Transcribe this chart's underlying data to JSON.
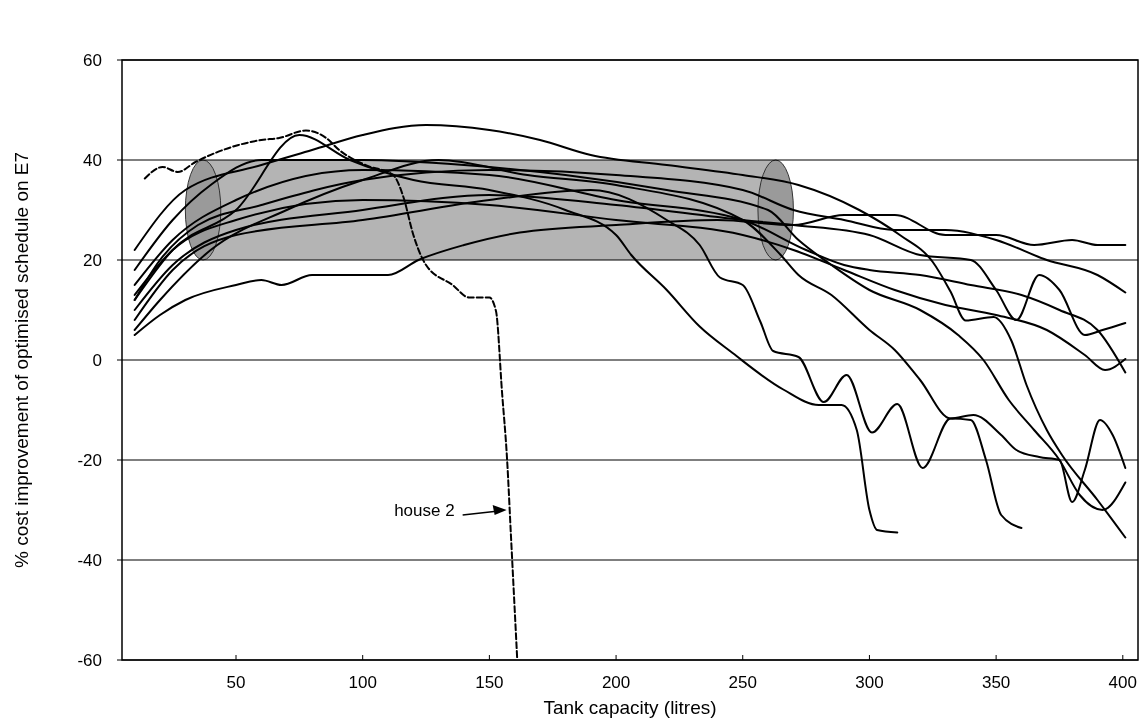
{
  "chart_data": {
    "type": "line",
    "xlabel": "Tank capacity (litres)",
    "ylabel": "% cost improvement of optimised schedule on E7",
    "xlim": [
      5,
      406
    ],
    "xticks": [
      50,
      100,
      150,
      200,
      250,
      300,
      350,
      400
    ],
    "ylim": [
      -60,
      60
    ],
    "yticks": [
      -60,
      -40,
      -20,
      0,
      20,
      40,
      60
    ],
    "grid": "y",
    "marker": "none",
    "annotations": [
      "house 2"
    ],
    "line_style": "solid",
    "series": [
      {
        "color": "#000000",
        "x": [
          10,
          20,
          30,
          50,
          60,
          68,
          80,
          100,
          110,
          122,
          140,
          162,
          200,
          240,
          270,
          290,
          310,
          330,
          350,
          365,
          380,
          390,
          401
        ],
        "values": [
          5,
          9,
          12,
          15,
          16,
          15,
          17,
          17,
          17,
          20,
          23,
          25.5,
          27,
          28,
          27,
          29,
          29,
          25,
          25,
          23,
          24,
          23,
          23
        ]
      },
      {
        "color": "#000000",
        "x": [
          10,
          20,
          35,
          60,
          100,
          150,
          200,
          250,
          270,
          290,
          310,
          330,
          350,
          370,
          390,
          401
        ],
        "values": [
          12,
          20,
          27,
          31,
          36,
          38,
          37,
          34,
          30,
          28,
          26,
          26,
          24,
          20,
          17,
          13.5
        ]
      },
      {
        "color": "#000000",
        "x": [
          10,
          25,
          50,
          100,
          150,
          200,
          250,
          270,
          300,
          320,
          340,
          350,
          358,
          367,
          375,
          385,
          392,
          401
        ],
        "values": [
          10,
          19,
          26,
          30,
          33,
          31,
          28,
          27,
          25,
          21,
          20,
          14,
          8,
          17,
          14,
          5,
          6,
          7.4
        ]
      },
      {
        "color": "#000000",
        "x": [
          10,
          25,
          50,
          100,
          150,
          200,
          250,
          270,
          290,
          310,
          330,
          350,
          370,
          385,
          393,
          401
        ],
        "values": [
          13,
          22,
          28,
          32,
          31,
          28,
          25,
          22,
          18,
          14,
          11,
          9,
          6,
          1,
          -2,
          0.2
        ]
      },
      {
        "color": "#000000",
        "x": [
          10,
          25,
          50,
          100,
          150,
          200,
          250,
          275,
          290,
          300,
          320,
          340,
          360,
          375,
          390,
          401
        ],
        "values": [
          15,
          24,
          32,
          38,
          37,
          32,
          28,
          22,
          19,
          18,
          17,
          15,
          13,
          10,
          6,
          -2.5
        ]
      },
      {
        "color": "#000000",
        "x": [
          10,
          30,
          60,
          80,
          100,
          125,
          150,
          170,
          190,
          220,
          250,
          272,
          296,
          312,
          325,
          332,
          338,
          349,
          356,
          362,
          370,
          376,
          390,
          401
        ],
        "values": [
          22,
          34,
          39,
          42,
          45,
          47,
          46,
          44,
          41,
          39,
          37,
          35,
          30,
          25,
          19.6,
          13.7,
          7.9,
          8.6,
          3.9,
          -5,
          -14,
          -19,
          -28,
          -35.5
        ]
      },
      {
        "color": "#000000",
        "x": [
          10,
          20,
          40,
          70,
          100,
          130,
          165,
          200,
          250,
          265,
          272,
          285,
          300,
          310,
          320,
          332,
          341,
          352,
          358,
          367,
          375,
          380,
          385,
          391,
          396,
          401
        ],
        "values": [
          6,
          12,
          22,
          30,
          36,
          40,
          37,
          35,
          28,
          21,
          17,
          13,
          6,
          2,
          -4,
          -11.7,
          -11,
          -15,
          -18,
          -19.4,
          -20,
          -28.4,
          -22,
          -12,
          -15,
          -21.6
        ]
      },
      {
        "color": "#000000",
        "x": [
          10,
          25,
          50,
          75,
          95,
          120,
          150,
          180,
          200,
          206,
          220,
          233,
          246,
          266,
          280,
          289,
          295,
          300,
          303,
          311
        ],
        "values": [
          12,
          22,
          30,
          45,
          40,
          36,
          34,
          30,
          25,
          21,
          14,
          6.7,
          1.4,
          -5.9,
          -9,
          -9,
          -14,
          -30,
          -34,
          -34.5
        ]
      },
      {
        "color": "#000000",
        "x": [
          10,
          25,
          50,
          100,
          150,
          190,
          220,
          233,
          241,
          250,
          257,
          262,
          272,
          282,
          291,
          301,
          311,
          321,
          332,
          340,
          346,
          352,
          360
        ],
        "values": [
          8,
          18,
          25,
          28,
          32,
          34,
          28,
          23,
          16.5,
          15,
          7.6,
          1.8,
          0.6,
          -8.4,
          -3,
          -14.5,
          -8.8,
          -21.6,
          -11.7,
          -12,
          -20,
          -31,
          -33.6
        ]
      },
      {
        "color": "#000000",
        "x": [
          10,
          25,
          40,
          60,
          100,
          140,
          180,
          220,
          260,
          272,
          285,
          300,
          320,
          335,
          345,
          355,
          365,
          375,
          383,
          392,
          401
        ],
        "values": [
          18,
          28,
          35,
          40,
          40,
          39,
          37,
          34,
          30,
          24,
          19,
          14,
          10,
          5,
          0,
          -8,
          -14,
          -20,
          -27,
          -30,
          -24.5
        ]
      },
      {
        "color": "#000000",
        "line_style": "dashed",
        "x": [
          14,
          21,
          27,
          34,
          51,
          60,
          67,
          77.6,
          85.6,
          90.7,
          101,
          112,
          116,
          120,
          125,
          135.5,
          142,
          150,
          152.6,
          155,
          157,
          158.5,
          161
        ],
        "values": [
          36.3,
          38.6,
          37.6,
          39.6,
          43,
          44,
          44.4,
          45.9,
          44.4,
          42,
          39,
          37,
          32.7,
          25,
          19,
          15,
          12.5,
          12.5,
          9.8,
          -6.5,
          -20,
          -35,
          -60
        ]
      }
    ]
  }
}
